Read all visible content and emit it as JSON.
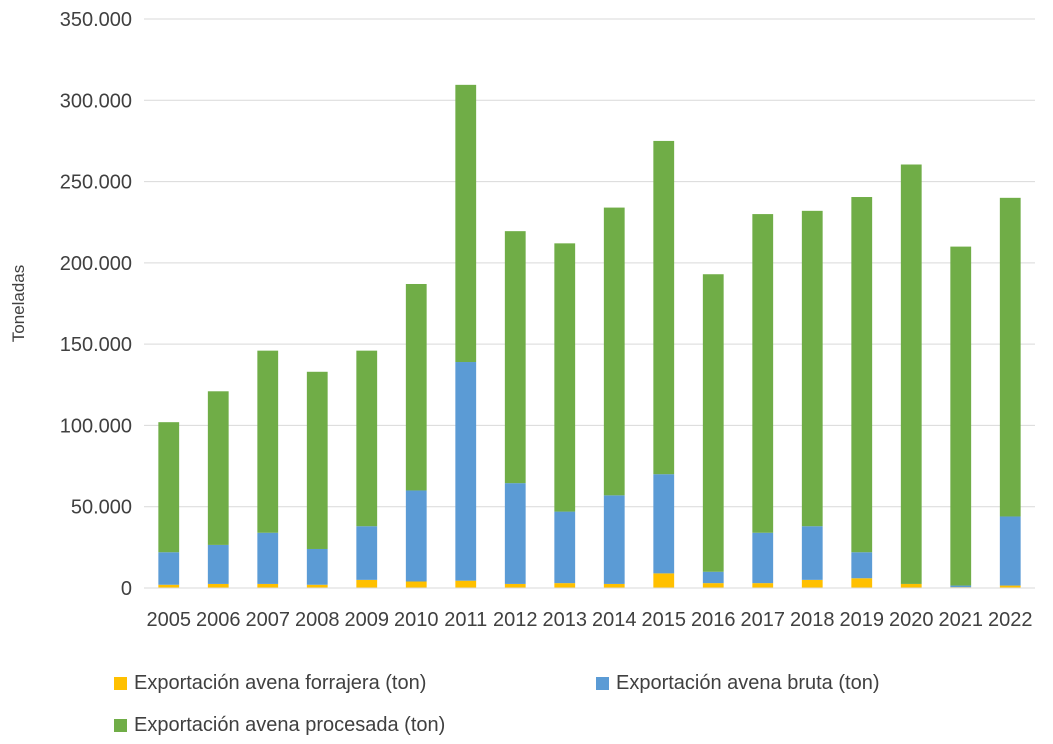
{
  "chart_data": {
    "type": "bar",
    "stacked": true,
    "title": "",
    "xlabel": "",
    "ylabel": "Toneladas",
    "ylim": [
      0,
      350000
    ],
    "yticks": [
      0,
      50000,
      100000,
      150000,
      200000,
      250000,
      300000,
      350000
    ],
    "ytick_labels": [
      "0",
      "50.000",
      "100.000",
      "150.000",
      "200.000",
      "250.000",
      "300.000",
      "350.000"
    ],
    "grid": true,
    "legend_position": "bottom",
    "categories": [
      "2005",
      "2006",
      "2007",
      "2008",
      "2009",
      "2010",
      "2011",
      "2012",
      "2013",
      "2014",
      "2015",
      "2016",
      "2017",
      "2018",
      "2019",
      "2020",
      "2021",
      "2022"
    ],
    "series": [
      {
        "name": "Exportación avena forrajera (ton)",
        "color": "#FFC000",
        "values": [
          2000,
          2500,
          2500,
          2000,
          5000,
          4000,
          4500,
          2500,
          3000,
          2500,
          9000,
          3000,
          3000,
          5000,
          6000,
          2500,
          500,
          1500
        ]
      },
      {
        "name": "Exportación avena bruta (ton)",
        "color": "#5B9BD5",
        "values": [
          20000,
          24000,
          31500,
          22000,
          33000,
          56000,
          134500,
          62000,
          44000,
          54500,
          61000,
          7000,
          31000,
          33000,
          16000,
          0,
          1000,
          42500
        ]
      },
      {
        "name": "Exportación avena procesada (ton)",
        "color": "#70AD47",
        "values": [
          80000,
          94500,
          112000,
          109000,
          108000,
          127000,
          170500,
          155000,
          165000,
          177000,
          205000,
          183000,
          196000,
          194000,
          218500,
          258000,
          208500,
          196000
        ]
      }
    ]
  }
}
